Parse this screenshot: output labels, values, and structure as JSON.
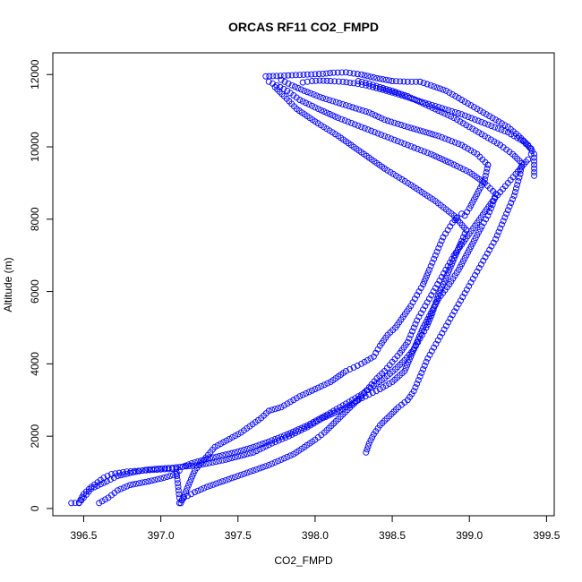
{
  "chart_data": {
    "type": "scatter",
    "title": "ORCAS RF11 CO2_FMPD",
    "xlabel": "CO2_FMPD",
    "ylabel": "Altitude (m)",
    "xlim": [
      396.3,
      399.55
    ],
    "ylim": [
      -200,
      12600
    ],
    "xticks": [
      396.5,
      397.0,
      397.5,
      398.0,
      398.5,
      399.0,
      399.5
    ],
    "xtick_labels": [
      "396.5",
      "397.0",
      "397.5",
      "398.0",
      "398.5",
      "399.0",
      "399.5"
    ],
    "yticks": [
      0,
      2000,
      4000,
      6000,
      8000,
      10000,
      12000
    ],
    "ytick_labels": [
      "0",
      "2000",
      "4000",
      "6000",
      "8000",
      "10000",
      "12000"
    ],
    "grid": false,
    "marker": "open-circle",
    "color": "#0000ff",
    "series": [
      {
        "x": [
          396.42,
          396.47,
          396.5,
          396.55,
          396.63,
          396.68,
          396.78,
          396.88,
          397.0,
          397.1,
          397.11,
          397.12,
          397.13,
          397.22,
          397.35,
          397.52,
          397.65,
          397.7,
          397.78,
          397.9,
          398.0,
          398.1,
          398.2,
          398.25,
          398.3,
          398.38,
          398.42,
          398.47,
          398.52,
          398.57,
          398.62,
          398.66,
          398.7,
          398.74,
          398.77,
          398.8,
          398.83,
          398.86,
          398.89,
          398.92,
          398.95,
          398.97,
          399.0,
          399.05,
          399.1,
          399.12
        ],
        "y": [
          150,
          160,
          400,
          600,
          850,
          950,
          1020,
          1050,
          1080,
          1100,
          700,
          300,
          150,
          1050,
          1700,
          2100,
          2500,
          2700,
          2800,
          3100,
          3300,
          3500,
          3800,
          3900,
          4000,
          4200,
          4500,
          4800,
          5000,
          5300,
          5600,
          5900,
          6200,
          6600,
          6900,
          7200,
          7500,
          7700,
          7900,
          8050,
          8150,
          8100,
          8300,
          8700,
          9100,
          9500
        ]
      },
      {
        "x": [
          399.12,
          399.05,
          398.95,
          398.8,
          398.6,
          398.45,
          398.35,
          398.2,
          398.05,
          397.93,
          397.85,
          397.78
        ],
        "y": [
          9500,
          9800,
          10050,
          10300,
          10550,
          10750,
          10950,
          11150,
          11350,
          11550,
          11700,
          11850
        ]
      },
      {
        "x": [
          396.47,
          396.5,
          396.55,
          396.65,
          396.72,
          396.82,
          396.92,
          397.05,
          397.1,
          397.25,
          397.42,
          397.6,
          397.72,
          397.83,
          397.95,
          398.05,
          398.18,
          398.28,
          398.35,
          398.42,
          398.5,
          398.58,
          398.62,
          398.66,
          398.7,
          398.75,
          398.8,
          398.87,
          398.93,
          398.98,
          399.03,
          399.08,
          399.12,
          399.15,
          399.17
        ],
        "y": [
          150,
          300,
          550,
          750,
          900,
          1000,
          1080,
          1120,
          1140,
          1200,
          1350,
          1550,
          1800,
          2000,
          2250,
          2500,
          2750,
          3000,
          3150,
          3300,
          3500,
          3800,
          4200,
          4600,
          5000,
          5400,
          5800,
          6200,
          6600,
          7000,
          7400,
          7800,
          8100,
          8400,
          8700
        ]
      },
      {
        "x": [
          399.17,
          399.1,
          399.0,
          398.88,
          398.75,
          398.6,
          398.45,
          398.3,
          398.15,
          398.02,
          397.9,
          397.82,
          397.75,
          397.7
        ],
        "y": [
          8700,
          9000,
          9300,
          9550,
          9800,
          10050,
          10300,
          10550,
          10800,
          11050,
          11300,
          11550,
          11700,
          11800
        ]
      },
      {
        "x": [
          396.6,
          396.66,
          396.72,
          396.8,
          396.92,
          397.02,
          397.1,
          397.12,
          397.14,
          397.2,
          397.28,
          397.38,
          397.48,
          397.6,
          397.7,
          397.82,
          397.95,
          398.08,
          398.2,
          398.3,
          398.38,
          398.45,
          398.52,
          398.58,
          398.64,
          398.68,
          398.72,
          398.76,
          398.79,
          398.83,
          398.87,
          398.91,
          398.95,
          398.98
        ],
        "y": [
          150,
          300,
          500,
          650,
          750,
          850,
          950,
          1050,
          1150,
          1250,
          1350,
          1450,
          1550,
          1700,
          1850,
          2050,
          2300,
          2600,
          2900,
          3150,
          3400,
          3600,
          3850,
          4100,
          4400,
          4700,
          5000,
          5400,
          5800,
          6200,
          6600,
          7000,
          7400,
          7700
        ]
      },
      {
        "x": [
          398.98,
          398.9,
          398.78,
          398.62,
          398.45,
          398.3,
          398.15,
          398.0,
          397.88,
          397.8,
          397.74
        ],
        "y": [
          7700,
          8100,
          8500,
          8950,
          9400,
          9850,
          10300,
          10700,
          11050,
          11400,
          11650
        ]
      },
      {
        "x": [
          397.12,
          397.15,
          397.22,
          397.3,
          397.4,
          397.5,
          397.6,
          397.7,
          397.78,
          397.86,
          397.93,
          398.0,
          398.06,
          398.12,
          398.18,
          398.24,
          398.3,
          398.35,
          398.4,
          398.45,
          398.5,
          398.55,
          398.6,
          398.63,
          398.66,
          398.7,
          398.74,
          398.78,
          398.82,
          398.86,
          398.9,
          398.95,
          399.0,
          399.05,
          399.1,
          399.15,
          399.2,
          399.25,
          399.3,
          399.34,
          399.38,
          399.4,
          399.4
        ],
        "y": [
          150,
          300,
          450,
          600,
          750,
          900,
          1050,
          1200,
          1350,
          1500,
          1700,
          1900,
          2100,
          2350,
          2600,
          2850,
          3100,
          3350,
          3600,
          3800,
          4050,
          4300,
          4600,
          4900,
          5200,
          5500,
          5800,
          6100,
          6400,
          6700,
          7000,
          7300,
          7600,
          7900,
          8200,
          8500,
          8750,
          9000,
          9250,
          9450,
          9650,
          9800,
          9950
        ]
      },
      {
        "x": [
          399.4,
          399.35,
          399.25,
          399.1,
          398.95,
          398.8,
          398.65,
          398.52,
          398.42,
          398.33,
          398.25,
          398.18,
          398.1,
          398.03,
          397.98,
          397.95,
          397.92
        ],
        "y": [
          9950,
          10150,
          10400,
          10650,
          10900,
          11100,
          11300,
          11480,
          11600,
          11700,
          11760,
          11800,
          11820,
          11830,
          11820,
          11800,
          11780
        ]
      },
      {
        "x": [
          398.33,
          398.35,
          398.38,
          398.42,
          398.48,
          398.54,
          398.6,
          398.64,
          398.67,
          398.7,
          398.73,
          398.77,
          398.81,
          398.85,
          398.89,
          398.93,
          398.97,
          399.01,
          399.05,
          399.09,
          399.13,
          399.17,
          399.2,
          399.23,
          399.26,
          399.29,
          399.31,
          399.33,
          399.34
        ],
        "y": [
          1550,
          1800,
          2050,
          2300,
          2550,
          2800,
          3000,
          3250,
          3550,
          3850,
          4150,
          4450,
          4750,
          5050,
          5350,
          5650,
          5950,
          6250,
          6550,
          6850,
          7150,
          7450,
          7750,
          8050,
          8350,
          8650,
          8950,
          9250,
          9550
        ]
      },
      {
        "x": [
          399.34,
          399.28,
          399.2,
          399.1,
          399.0,
          398.9,
          398.8,
          398.7,
          398.6,
          398.5,
          398.42,
          398.35,
          398.28
        ],
        "y": [
          9550,
          9800,
          10050,
          10300,
          10550,
          10800,
          11000,
          11200,
          11400,
          11550,
          11650,
          11750,
          11820
        ]
      },
      {
        "x": [
          397.68,
          397.75,
          397.85,
          397.95,
          398.05,
          398.12,
          398.2,
          398.3,
          398.4,
          398.5,
          398.6,
          398.68
        ],
        "y": [
          11950,
          11960,
          11980,
          12000,
          12020,
          12050,
          12060,
          12000,
          11900,
          11820,
          11800,
          11800
        ]
      },
      {
        "x": [
          398.68,
          398.75,
          398.85,
          398.95,
          399.05,
          399.15,
          399.25,
          399.32,
          399.38,
          399.42,
          399.42,
          399.42
        ],
        "y": [
          11800,
          11700,
          11550,
          11300,
          11050,
          10800,
          10550,
          10300,
          10050,
          9800,
          9500,
          9200
        ]
      }
    ]
  }
}
